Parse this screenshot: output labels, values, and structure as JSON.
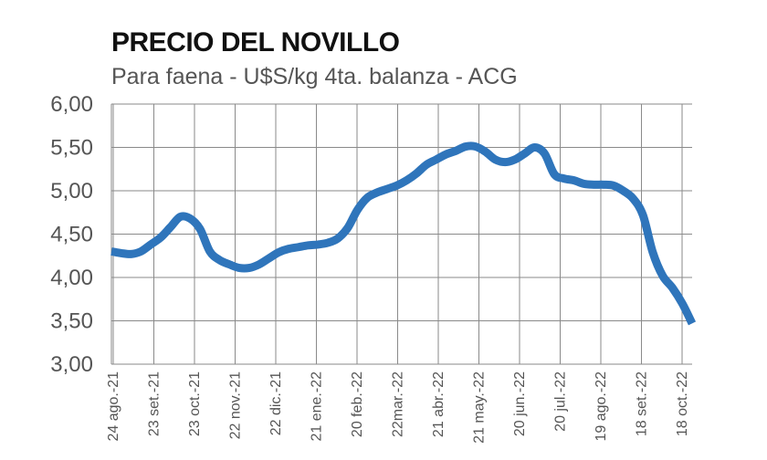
{
  "chart_data": {
    "type": "line",
    "title": "PRECIO DEL NOVILLO",
    "subtitle": "Para faena - U$S/kg 4ta. balanza - ACG",
    "ylim": [
      3.0,
      6.0
    ],
    "y_ticks": [
      "3,00",
      "3,50",
      "4,00",
      "4,50",
      "5,00",
      "5,50",
      "6,00"
    ],
    "y_tick_values": [
      3.0,
      3.5,
      4.0,
      4.5,
      5.0,
      5.5,
      6.0
    ],
    "x_tick_labels": [
      "24 ago.-21",
      "23 set.-21",
      "23 oct.-21",
      "22 nov.-21",
      "22 dic.-21",
      "21 ene.-22",
      "20 feb.-22",
      "22mar.-22",
      "21 abr.-22",
      "21 may.-22",
      "20 jun.-22",
      "20 jul.-22",
      "19 ago.-22",
      "18 set.-22",
      "18 oct.-22"
    ],
    "grid": true,
    "line_color": "#2f75bb",
    "series": [
      {
        "values": [
          4.3,
          4.28,
          4.27,
          4.3,
          4.38,
          4.46,
          4.58,
          4.7,
          4.68,
          4.56,
          4.3,
          4.2,
          4.15,
          4.11,
          4.11,
          4.15,
          4.22,
          4.29,
          4.33,
          4.35,
          4.37,
          4.38,
          4.4,
          4.45,
          4.57,
          4.78,
          4.92,
          4.98,
          5.02,
          5.06,
          5.12,
          5.2,
          5.3,
          5.36,
          5.42,
          5.46,
          5.51,
          5.51,
          5.45,
          5.36,
          5.33,
          5.36,
          5.43,
          5.5,
          5.43,
          5.19,
          5.14,
          5.12,
          5.08,
          5.07,
          5.07,
          5.06,
          5.0,
          4.91,
          4.72,
          4.29,
          4.02,
          3.88,
          3.7,
          3.47
        ]
      }
    ]
  }
}
